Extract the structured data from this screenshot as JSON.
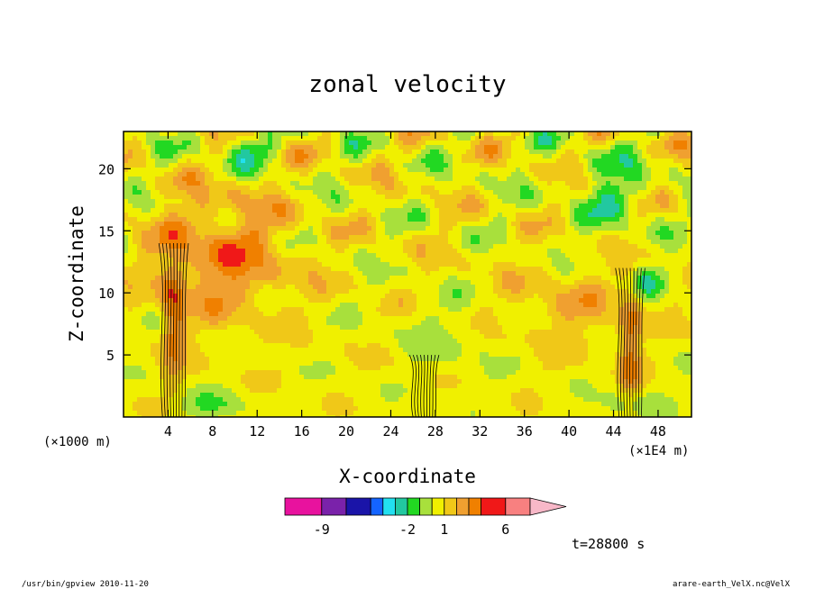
{
  "chart_data": {
    "type": "heatmap",
    "title": "zonal velocity",
    "xlabel": "X-coordinate",
    "ylabel": "Z-coordinate",
    "x_unit": "(×1000 m)",
    "x_extra_unit": "(×1E4 m)",
    "xlim": [
      0,
      51
    ],
    "ylim": [
      0,
      23
    ],
    "x_ticks": [
      4,
      8,
      12,
      16,
      20,
      24,
      28,
      32,
      36,
      40,
      44,
      48
    ],
    "y_ticks": [
      5,
      10,
      15,
      20
    ],
    "colorbar": {
      "levels": [
        -12,
        -9,
        -7,
        -5,
        -4,
        -3,
        -2,
        -1,
        0,
        1,
        2,
        3,
        4,
        6,
        8
      ],
      "labels": [
        "-9",
        "-2",
        "1",
        "6"
      ],
      "colors": [
        "#e8129e",
        "#7a22aa",
        "#1a14a8",
        "#1464ff",
        "#22e0f0",
        "#22c8a0",
        "#22d822",
        "#a8e03c",
        "#f0f000",
        "#f0c818",
        "#f0a030",
        "#f08000",
        "#f01818",
        "#f88080"
      ],
      "extend": "both"
    },
    "time_label": "t=28800 s"
  },
  "footer": {
    "left": "/usr/bin/gpview   2010-11-20",
    "right": "arare-earth_VelX.nc@VelX"
  }
}
